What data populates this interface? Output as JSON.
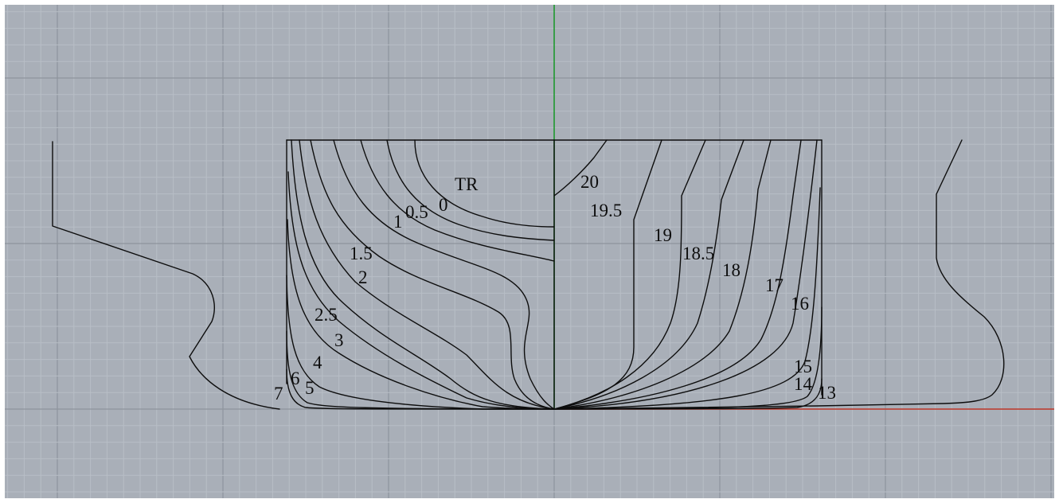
{
  "viewport": {
    "background": "#a9afb8",
    "grid_minor_color": "#b8bec6",
    "grid_major_color": "#8e949d",
    "axis_y_color": "#1f9a2f",
    "axis_x_color": "#c0392b",
    "line_color": "#0d0d0d"
  },
  "aft_labels": {
    "TR": "TR",
    "s0": "0",
    "s0_5": "0.5",
    "s1": "1",
    "s1_5": "1.5",
    "s2": "2",
    "s2_5": "2.5",
    "s3": "3",
    "s4": "4",
    "s5": "5",
    "s6": "6",
    "s7": "7"
  },
  "fwd_labels": {
    "s20": "20",
    "s19_5": "19.5",
    "s19": "19",
    "s18_5": "18.5",
    "s18": "18",
    "s17": "17",
    "s16": "16",
    "s15": "15",
    "s14": "14",
    "s13": "13"
  }
}
